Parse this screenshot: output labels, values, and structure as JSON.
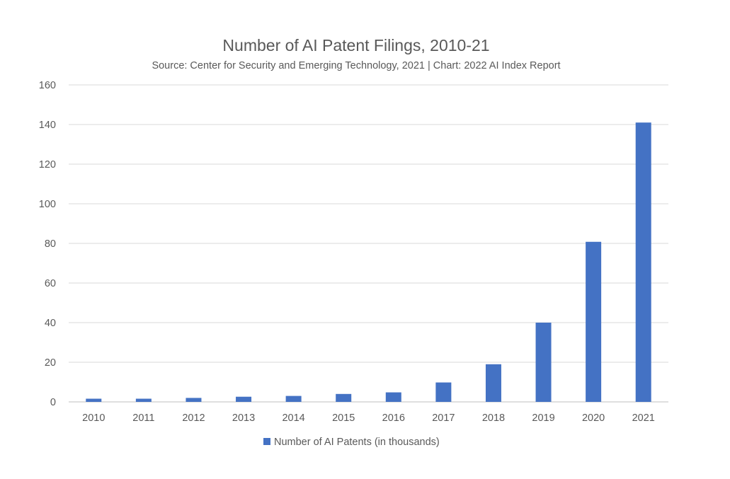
{
  "chart_data": {
    "type": "bar",
    "title": "Number of AI Patent Filings, 2010-21",
    "subtitle": "Source: Center for Security and Emerging Technology, 2021 | Chart: 2022 AI Index Report",
    "xlabel": "",
    "ylabel": "",
    "categories": [
      "2010",
      "2011",
      "2012",
      "2013",
      "2014",
      "2015",
      "2016",
      "2017",
      "2018",
      "2019",
      "2020",
      "2021"
    ],
    "series": [
      {
        "name": "Number of AI Patents (in thousands)",
        "values": [
          1.6,
          1.6,
          2.0,
          2.6,
          3.0,
          4.0,
          4.8,
          9.8,
          19.0,
          40.0,
          80.8,
          141.0
        ],
        "color": "#4472c4"
      }
    ],
    "ylim": [
      0,
      160
    ],
    "yticks": [
      0,
      20,
      40,
      60,
      80,
      100,
      120,
      140,
      160
    ],
    "grid": true,
    "legend_position": "bottom"
  }
}
